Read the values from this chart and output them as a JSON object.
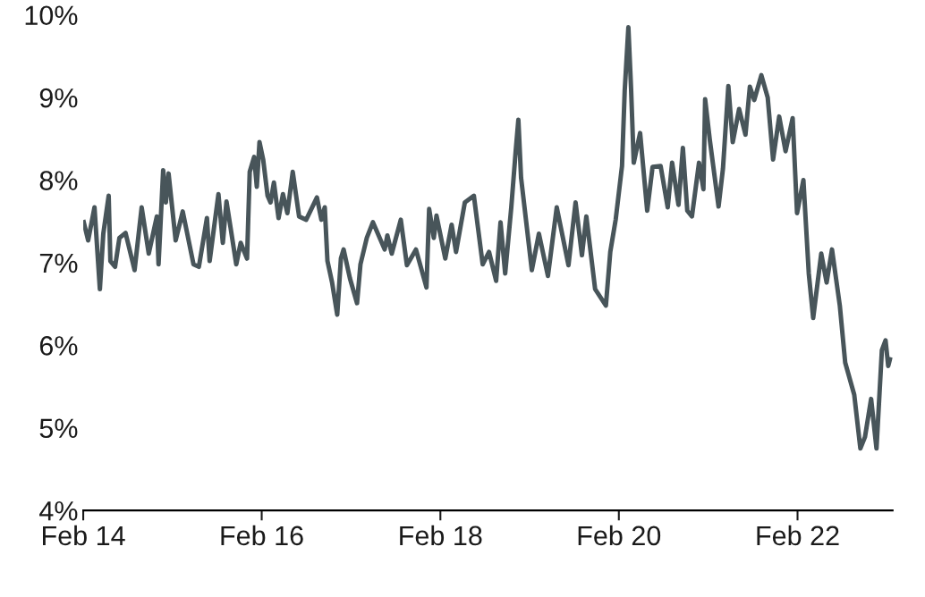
{
  "chart_data": {
    "type": "line",
    "color": "#48555a",
    "grid": false,
    "legend": false,
    "marker": "none",
    "line_style": "solid",
    "xlim": [
      "2014-02-01",
      "2023-02-25"
    ],
    "ylim": [
      4,
      10
    ],
    "xticks": [
      {
        "value": "2014-02-01",
        "label": "Feb 14"
      },
      {
        "value": "2016-02-01",
        "label": "Feb 16"
      },
      {
        "value": "2018-02-01",
        "label": "Feb 18"
      },
      {
        "value": "2020-02-01",
        "label": "Feb 20"
      },
      {
        "value": "2022-02-01",
        "label": "Feb 22"
      }
    ],
    "yticks": [
      {
        "value": 4,
        "label": "4%"
      },
      {
        "value": 5,
        "label": "5%"
      },
      {
        "value": 6,
        "label": "6%"
      },
      {
        "value": 7,
        "label": "7%"
      },
      {
        "value": 8,
        "label": "8%"
      },
      {
        "value": 9,
        "label": "9%"
      },
      {
        "value": 10,
        "label": "10%"
      }
    ],
    "x": [
      "2014-02-03",
      "2014-02-21",
      "2014-03-19",
      "2014-04-10",
      "2014-04-24",
      "2014-05-16",
      "2014-05-23",
      "2014-06-11",
      "2014-06-29",
      "2014-07-24",
      "2014-08-30",
      "2014-09-28",
      "2014-10-27",
      "2014-11-29",
      "2014-12-06",
      "2014-12-25",
      "2015-01-05",
      "2015-01-16",
      "2015-02-14",
      "2015-03-15",
      "2015-04-28",
      "2015-05-20",
      "2015-06-22",
      "2015-07-03",
      "2015-08-08",
      "2015-08-26",
      "2015-09-10",
      "2015-10-20",
      "2015-11-07",
      "2015-12-03",
      "2015-12-14",
      "2016-01-01",
      "2016-01-12",
      "2016-01-23",
      "2016-02-07",
      "2016-02-25",
      "2016-03-08",
      "2016-03-22",
      "2016-04-10",
      "2016-04-28",
      "2016-05-16",
      "2016-06-07",
      "2016-07-03",
      "2016-08-01",
      "2016-09-14",
      "2016-10-02",
      "2016-10-16",
      "2016-10-27",
      "2016-11-15",
      "2016-12-06",
      "2016-12-21",
      "2017-01-01",
      "2017-01-27",
      "2017-02-25",
      "2017-03-11",
      "2017-04-06",
      "2017-05-01",
      "2017-06-18",
      "2017-06-29",
      "2017-07-17",
      "2017-08-23",
      "2017-09-17",
      "2017-10-24",
      "2017-12-06",
      "2017-12-17",
      "2018-01-05",
      "2018-01-16",
      "2018-02-21",
      "2018-03-19",
      "2018-04-06",
      "2018-05-12",
      "2018-06-18",
      "2018-07-24",
      "2018-08-19",
      "2018-09-17",
      "2018-10-05",
      "2018-10-24",
      "2018-11-18",
      "2018-12-06",
      "2018-12-17",
      "2018-12-28",
      "2019-02-10",
      "2019-03-11",
      "2019-04-17",
      "2019-05-23",
      "2019-07-10",
      "2019-08-08",
      "2019-09-03",
      "2019-09-21",
      "2019-10-27",
      "2019-12-10",
      "2019-12-28",
      "2020-01-19",
      "2020-02-14",
      "2020-02-25",
      "2020-03-11",
      "2020-03-22",
      "2020-04-02",
      "2020-04-28",
      "2020-05-27",
      "2020-06-18",
      "2020-07-21",
      "2020-08-19",
      "2020-09-06",
      "2020-10-02",
      "2020-10-20",
      "2020-11-07",
      "2020-11-26",
      "2020-12-25",
      "2021-01-12",
      "2021-01-19",
      "2021-02-07",
      "2021-03-15",
      "2021-04-02",
      "2021-04-24",
      "2021-05-12",
      "2021-06-07",
      "2021-07-03",
      "2021-07-21",
      "2021-08-08",
      "2021-09-06",
      "2021-10-02",
      "2021-10-24",
      "2021-11-18",
      "2021-12-14",
      "2022-01-12",
      "2022-01-30",
      "2022-02-25",
      "2022-03-19",
      "2022-04-06",
      "2022-05-09",
      "2022-05-31",
      "2022-06-22",
      "2022-07-24",
      "2022-08-15",
      "2022-09-21",
      "2022-10-16",
      "2022-11-04",
      "2022-11-29",
      "2022-12-21",
      "2023-01-12",
      "2023-01-27",
      "2023-02-07",
      "2023-02-14"
    ],
    "values": [
      7.49,
      7.27,
      7.67,
      6.68,
      7.35,
      7.81,
      7.02,
      6.95,
      7.3,
      7.36,
      6.91,
      7.67,
      7.11,
      7.56,
      6.98,
      8.12,
      7.73,
      8.08,
      7.27,
      7.62,
      6.98,
      6.95,
      7.54,
      7.02,
      7.83,
      7.24,
      7.74,
      6.98,
      7.24,
      7.05,
      8.1,
      8.28,
      7.92,
      8.46,
      8.25,
      7.81,
      7.73,
      7.97,
      7.54,
      7.83,
      7.6,
      8.1,
      7.56,
      7.52,
      7.79,
      7.52,
      7.67,
      7.02,
      6.76,
      6.37,
      7.05,
      7.16,
      6.81,
      6.51,
      6.98,
      7.3,
      7.49,
      7.16,
      7.33,
      7.11,
      7.52,
      6.97,
      7.16,
      6.7,
      7.65,
      7.3,
      7.57,
      7.05,
      7.46,
      7.13,
      7.73,
      7.81,
      6.98,
      7.13,
      6.78,
      7.49,
      6.87,
      7.67,
      8.35,
      8.73,
      8.03,
      6.91,
      7.35,
      6.84,
      7.67,
      6.97,
      7.73,
      7.09,
      7.56,
      6.68,
      6.48,
      7.13,
      7.52,
      8.17,
      9.08,
      9.85,
      9.11,
      8.21,
      8.57,
      7.63,
      8.16,
      8.17,
      7.67,
      8.21,
      7.7,
      8.39,
      7.63,
      7.56,
      8.21,
      7.89,
      8.98,
      8.49,
      7.68,
      8.14,
      9.14,
      8.46,
      8.86,
      8.55,
      9.13,
      8.97,
      9.27,
      9.0,
      8.25,
      8.77,
      8.35,
      8.75,
      7.6,
      8.0,
      6.87,
      6.33,
      7.11,
      6.76,
      7.16,
      6.48,
      5.79,
      5.4,
      4.75,
      4.89,
      5.35,
      4.75,
      5.94,
      6.06,
      5.75,
      5.83
    ]
  }
}
